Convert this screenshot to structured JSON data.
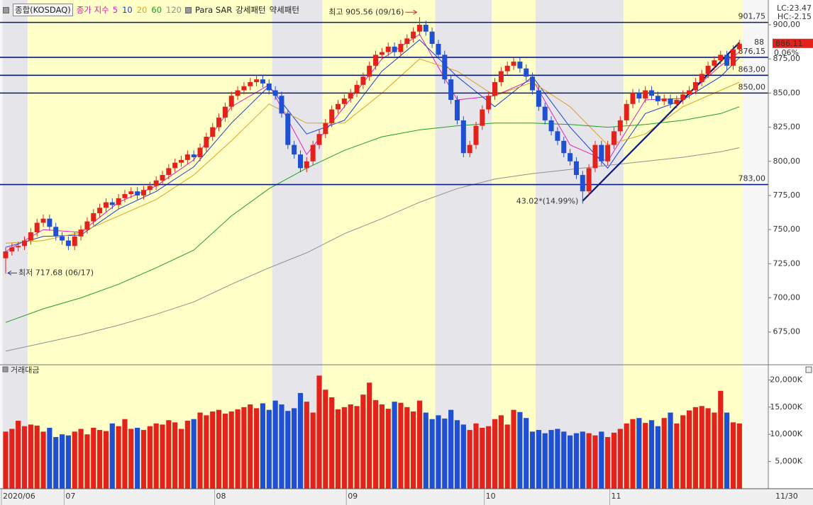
{
  "chart_data": {
    "type": "candlestick",
    "title": "종합(KOSDAQ)",
    "ma_label": "종가 지수",
    "indicator_label": "Para SAR",
    "volume_title": "거래대금",
    "lc_label": "LC:23.47",
    "hc_label": "HC:-2.15",
    "change_label": "0.06%",
    "cursor_label": "88",
    "x_end_label": "11/30",
    "up_color": "#e3231b",
    "down_color": "#1f4fd3",
    "ylim": [
      651,
      914
    ],
    "yticks": [
      {
        "value": 675,
        "label": "675,00"
      },
      {
        "value": 700,
        "label": "700,00"
      },
      {
        "value": 725,
        "label": "725,00"
      },
      {
        "value": 750,
        "label": "750,00"
      },
      {
        "value": 775,
        "label": "775,00"
      },
      {
        "value": 800,
        "label": "800,00"
      },
      {
        "value": 825,
        "label": "825,00"
      },
      {
        "value": 850,
        "label": "850,00"
      },
      {
        "value": 875,
        "label": "875,00"
      },
      {
        "value": 900,
        "label": "900,00"
      }
    ],
    "vlim": [
      0,
      22400
    ],
    "vticks": [
      {
        "value": 5000,
        "label": "5,000K"
      },
      {
        "value": 10000,
        "label": "10,000K"
      },
      {
        "value": 15000,
        "label": "15,000K"
      },
      {
        "value": 20000,
        "label": "20,000K"
      }
    ],
    "x_labels": [
      {
        "index": 0,
        "label": "2020/06"
      },
      {
        "index": 10,
        "label": "07"
      },
      {
        "index": 34,
        "label": "08"
      },
      {
        "index": 55,
        "label": "09"
      },
      {
        "index": 77,
        "label": "10"
      },
      {
        "index": 97,
        "label": "11"
      }
    ],
    "open": [
      729,
      734,
      737,
      738,
      742,
      748,
      755,
      758,
      752,
      745,
      742,
      738,
      745,
      750,
      756,
      762,
      766,
      770,
      768,
      773,
      776,
      778,
      775,
      779,
      782,
      786,
      790,
      795,
      799,
      801,
      805,
      803,
      810,
      818,
      825,
      832,
      840,
      848,
      852,
      855,
      858,
      860,
      857,
      852,
      848,
      835,
      812,
      805,
      795,
      800,
      812,
      820,
      828,
      838,
      842,
      846,
      850,
      856,
      862,
      870,
      878,
      880,
      884,
      880,
      886,
      890,
      895,
      900,
      895,
      886,
      878,
      860,
      845,
      830,
      806,
      812,
      826,
      838,
      848,
      858,
      866,
      870,
      873,
      868,
      862,
      852,
      840,
      830,
      822,
      815,
      806,
      800,
      790,
      778,
      795,
      812,
      800,
      812,
      822,
      830,
      842,
      850,
      846,
      852,
      848,
      844,
      846,
      842,
      845,
      849,
      852,
      858,
      864,
      870,
      874,
      878,
      870,
      882
    ],
    "high": [
      737,
      740,
      741,
      745,
      751,
      758,
      761,
      761,
      755,
      748,
      745,
      748,
      753,
      759,
      765,
      769,
      773,
      773,
      776,
      779,
      781,
      781,
      782,
      785,
      789,
      793,
      798,
      802,
      804,
      808,
      808,
      813,
      821,
      828,
      835,
      843,
      851,
      855,
      858,
      861,
      863,
      863,
      860,
      855,
      851,
      838,
      815,
      808,
      803,
      815,
      823,
      831,
      841,
      845,
      849,
      853,
      859,
      865,
      873,
      881,
      883,
      887,
      887,
      889,
      893,
      898,
      905.56,
      903,
      898,
      889,
      881,
      863,
      848,
      833,
      815,
      829,
      841,
      851,
      861,
      869,
      873,
      876,
      876,
      871,
      865,
      855,
      843,
      833,
      825,
      818,
      809,
      803,
      793,
      798,
      815,
      815,
      815,
      825,
      833,
      845,
      853,
      853,
      855,
      855,
      851,
      849,
      849,
      848,
      852,
      855,
      861,
      867,
      873,
      877,
      881,
      881,
      885,
      889
    ],
    "low": [
      717.68,
      731,
      734,
      735,
      739,
      745,
      752,
      749,
      742,
      739,
      735,
      735,
      742,
      747,
      753,
      759,
      763,
      765,
      765,
      770,
      773,
      772,
      772,
      776,
      779,
      783,
      787,
      792,
      796,
      798,
      800,
      800,
      807,
      815,
      822,
      829,
      837,
      845,
      849,
      852,
      855,
      854,
      849,
      845,
      832,
      809,
      802,
      792,
      792,
      797,
      809,
      817,
      825,
      835,
      839,
      843,
      847,
      853,
      859,
      867,
      875,
      877,
      877,
      877,
      883,
      887,
      892,
      892,
      883,
      875,
      857,
      842,
      827,
      803,
      803,
      809,
      823,
      835,
      845,
      855,
      863,
      867,
      865,
      859,
      849,
      837,
      827,
      819,
      812,
      803,
      797,
      787,
      769,
      775,
      792,
      797,
      797,
      809,
      819,
      827,
      839,
      843,
      843,
      845,
      841,
      841,
      839,
      839,
      842,
      846,
      849,
      855,
      861,
      867,
      871,
      867,
      867,
      879
    ],
    "close": [
      734,
      737,
      738,
      742,
      748,
      755,
      758,
      752,
      745,
      742,
      738,
      745,
      750,
      756,
      762,
      766,
      770,
      768,
      773,
      776,
      778,
      775,
      779,
      782,
      786,
      790,
      795,
      799,
      801,
      805,
      803,
      810,
      818,
      825,
      832,
      840,
      848,
      852,
      855,
      858,
      860,
      857,
      852,
      848,
      835,
      812,
      805,
      795,
      800,
      812,
      820,
      828,
      838,
      842,
      846,
      850,
      856,
      862,
      870,
      878,
      880,
      884,
      880,
      886,
      890,
      895,
      900,
      895,
      886,
      878,
      860,
      845,
      830,
      806,
      812,
      826,
      838,
      848,
      858,
      866,
      870,
      873,
      868,
      862,
      852,
      840,
      830,
      822,
      815,
      806,
      800,
      790,
      778,
      795,
      812,
      800,
      812,
      822,
      830,
      842,
      850,
      846,
      852,
      848,
      844,
      846,
      842,
      845,
      849,
      852,
      858,
      864,
      870,
      874,
      878,
      870,
      882,
      886.11
    ],
    "volume": [
      10500,
      11000,
      12500,
      11500,
      11800,
      11600,
      10500,
      11200,
      9500,
      10000,
      9800,
      10500,
      11000,
      10000,
      11200,
      10800,
      10600,
      12000,
      11500,
      12800,
      11000,
      11200,
      10800,
      11500,
      12000,
      11800,
      12600,
      12200,
      11000,
      12500,
      12800,
      14000,
      13500,
      14200,
      14500,
      13800,
      14200,
      14600,
      15000,
      15500,
      14800,
      15700,
      14500,
      16200,
      15500,
      14300,
      14800,
      17600,
      16000,
      14000,
      20800,
      18200,
      16800,
      14600,
      15000,
      15500,
      15200,
      17300,
      19500,
      16300,
      15500,
      14700,
      16000,
      15800,
      15000,
      14200,
      16200,
      14000,
      12800,
      13500,
      12900,
      14500,
      12600,
      11800,
      10800,
      12000,
      11200,
      11500,
      12800,
      13500,
      11800,
      14500,
      14100,
      13000,
      10500,
      10800,
      10200,
      10800,
      11000,
      10500,
      9800,
      10200,
      10500,
      10200,
      9800,
      10500,
      9500,
      10300,
      11000,
      12000,
      12800,
      13000,
      12100,
      12600,
      11500,
      13000,
      14000,
      12000,
      13500,
      14400,
      15000,
      15200,
      14800,
      14000,
      18000,
      14000,
      12200,
      12000
    ],
    "moving_averages": {
      "x": [
        0,
        6,
        12,
        18,
        24,
        30,
        36,
        42,
        48,
        54,
        60,
        66,
        72,
        78,
        84,
        90,
        96,
        102,
        108,
        114,
        117
      ],
      "series": [
        {
          "name": "5",
          "color": "#e020c0",
          "values": [
            734,
            750,
            748,
            770,
            782,
            801,
            840,
            856,
            805,
            840,
            875,
            893,
            845,
            848,
            860,
            812,
            800,
            845,
            846,
            870,
            880
          ]
        },
        {
          "name": "10",
          "color": "#2040d0",
          "values": [
            737,
            745,
            746,
            765,
            778,
            796,
            828,
            855,
            820,
            830,
            866,
            889,
            862,
            840,
            862,
            825,
            795,
            835,
            845,
            862,
            876
          ]
        },
        {
          "name": "20",
          "color": "#e0a020",
          "values": [
            740,
            742,
            748,
            760,
            772,
            790,
            815,
            842,
            828,
            828,
            850,
            875,
            866,
            848,
            858,
            840,
            812,
            820,
            840,
            852,
            858
          ]
        },
        {
          "name": "60",
          "color": "#20a020",
          "values": [
            682,
            692,
            700,
            710,
            722,
            735,
            760,
            780,
            795,
            808,
            818,
            823,
            826,
            828,
            828,
            827,
            825,
            827,
            830,
            835,
            840
          ]
        },
        {
          "name": "120",
          "color": "#909090",
          "values": [
            661,
            667,
            673,
            680,
            688,
            697,
            710,
            722,
            733,
            747,
            758,
            770,
            780,
            787,
            791,
            794,
            797,
            800,
            803,
            807,
            810
          ]
        }
      ]
    },
    "patterns": [
      {
        "name": "강세패턴",
        "color": "#ffffc8",
        "ranges": [
          [
            4,
            42
          ],
          [
            51,
            68
          ],
          [
            78,
            84
          ],
          [
            99,
            117
          ]
        ]
      },
      {
        "name": "약세패턴",
        "color": "#e6e6ea",
        "ranges": [
          [
            0,
            3
          ],
          [
            43,
            50
          ],
          [
            69,
            77
          ],
          [
            85,
            98
          ]
        ]
      }
    ],
    "levels": [
      {
        "value": 901.75,
        "label": "901,75"
      },
      {
        "value": 876.15,
        "label": "876,15"
      },
      {
        "value": 863,
        "label": "863,00"
      },
      {
        "value": 850,
        "label": "850,00"
      },
      {
        "value": 783,
        "label": "783,00"
      }
    ],
    "trendline": {
      "start": [
        92,
        771
      ],
      "end": [
        117,
        887
      ]
    },
    "annotations": [
      {
        "text": "최고 905.56 (09/16)",
        "index": 66,
        "anchor": "high",
        "color": "#e3231b"
      },
      {
        "text": "최저 717.68 (06/17)",
        "index": 0,
        "anchor": "low",
        "color": "#1f3fbf"
      },
      {
        "text": "43.02*(14.99%)",
        "index": 92,
        "anchor": "low",
        "color": "#1f3fbf"
      }
    ]
  }
}
